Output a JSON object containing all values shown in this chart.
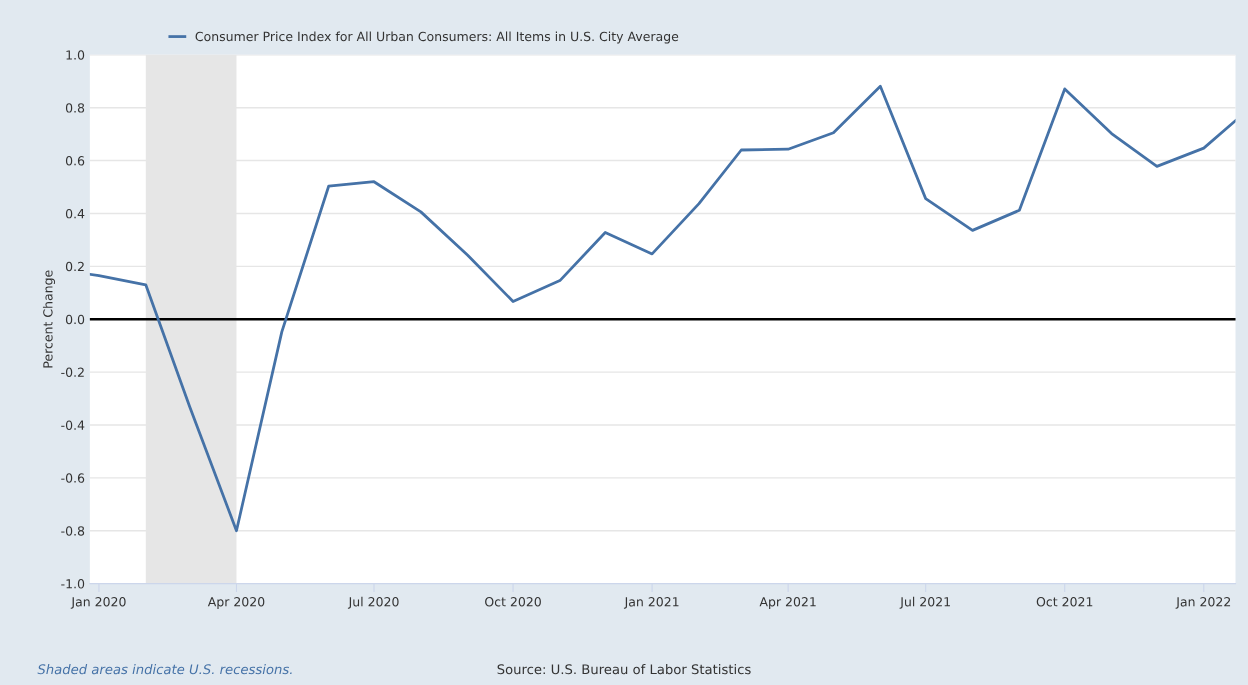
{
  "chart_data": {
    "type": "line",
    "ylabel": "Percent Change",
    "x": [
      "2019-12-26",
      "2020-01-01",
      "2020-02-01",
      "2020-03-01",
      "2020-04-01",
      "2020-05-01",
      "2020-06-01",
      "2020-07-01",
      "2020-08-01",
      "2020-09-01",
      "2020-10-01",
      "2020-11-01",
      "2020-12-01",
      "2021-01-01",
      "2021-02-01",
      "2021-03-01",
      "2021-04-01",
      "2021-05-01",
      "2021-06-01",
      "2021-07-01",
      "2021-08-01",
      "2021-09-01",
      "2021-10-01",
      "2021-11-01",
      "2021-12-01",
      "2022-01-01",
      "2022-01-22"
    ],
    "series": [
      {
        "name": "Consumer Price Index for All Urban Consumers: All Items in U.S. City Average",
        "color": "#4572a7",
        "values": [
          0.17,
          0.165,
          0.13,
          -0.33,
          -0.8,
          -0.048,
          0.503,
          0.52,
          0.406,
          0.242,
          0.067,
          0.146,
          0.328,
          0.247,
          0.437,
          0.64,
          0.643,
          0.705,
          0.881,
          0.456,
          0.336,
          0.412,
          0.871,
          0.702,
          0.578,
          0.647,
          0.751
        ]
      }
    ],
    "xlim": [
      "2019-12-26",
      "2022-01-22"
    ],
    "xticks": [
      {
        "value": "2020-01-01",
        "label": "Jan 2020"
      },
      {
        "value": "2020-04-01",
        "label": "Apr 2020"
      },
      {
        "value": "2020-07-01",
        "label": "Jul 2020"
      },
      {
        "value": "2020-10-01",
        "label": "Oct 2020"
      },
      {
        "value": "2021-01-01",
        "label": "Jan 2021"
      },
      {
        "value": "2021-04-01",
        "label": "Apr 2021"
      },
      {
        "value": "2021-07-01",
        "label": "Jul 2021"
      },
      {
        "value": "2021-10-01",
        "label": "Oct 2021"
      },
      {
        "value": "2022-01-01",
        "label": "Jan 2022"
      }
    ],
    "ylim": [
      -1,
      1
    ],
    "yticks": [
      {
        "value": -1,
        "label": "-1.0"
      },
      {
        "value": -0.8,
        "label": "-0.8"
      },
      {
        "value": -0.6,
        "label": "-0.6"
      },
      {
        "value": -0.4,
        "label": "-0.4"
      },
      {
        "value": -0.2,
        "label": "-0.2"
      },
      {
        "value": 0,
        "label": "0.0"
      },
      {
        "value": 0.2,
        "label": "0.2"
      },
      {
        "value": 0.4,
        "label": "0.4"
      },
      {
        "value": 0.6,
        "label": "0.6"
      },
      {
        "value": 0.8,
        "label": "0.8"
      },
      {
        "value": 1,
        "label": "1.0"
      }
    ],
    "grid": "y",
    "legend": "top left",
    "marker": "none",
    "line_style": "solid",
    "bands": [
      {
        "axis": "x",
        "from": "2020-02-01",
        "to": "2020-04-01",
        "color": "#e6e6e6"
      }
    ],
    "ref_lines": [
      {
        "axis": "y",
        "value": 0,
        "color": "#000000"
      }
    ],
    "annotations": [
      "Shaded areas indicate U.S. recessions.",
      "Source: U.S. Bureau of Labor Statistics"
    ]
  }
}
